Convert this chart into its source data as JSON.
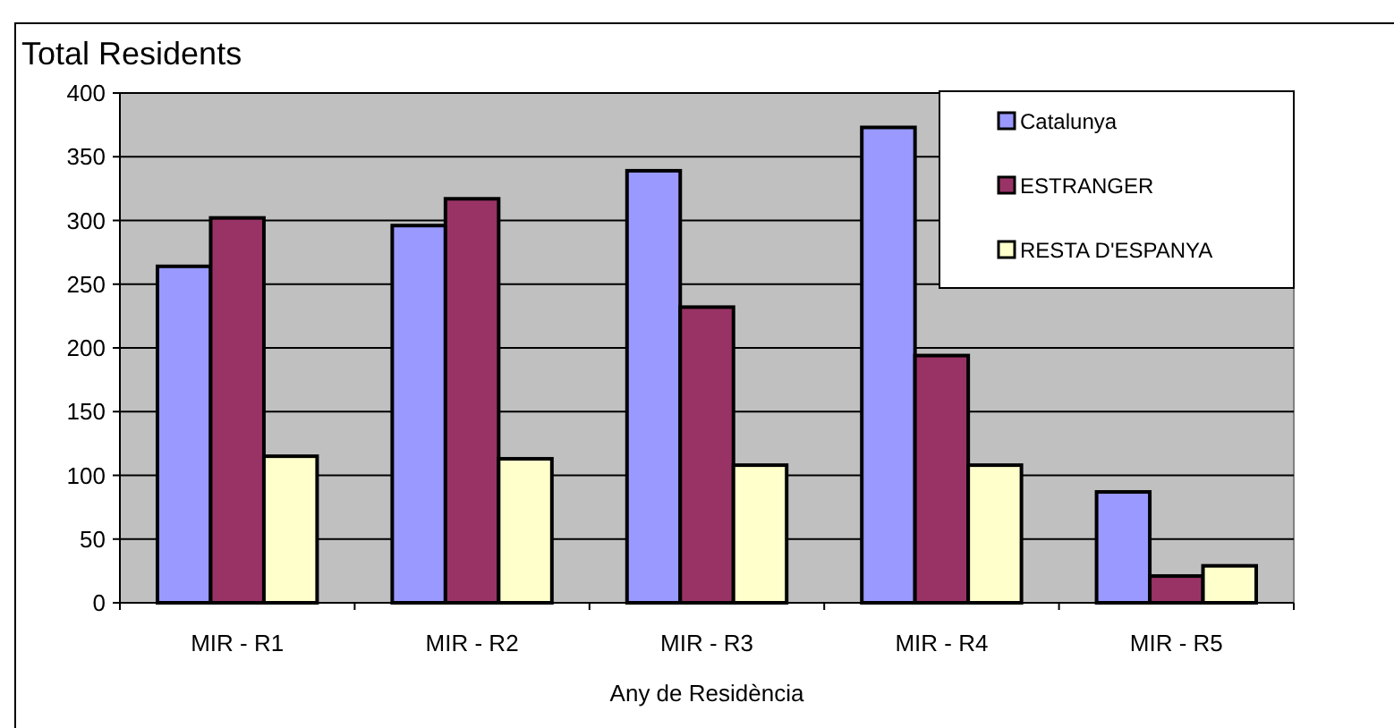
{
  "chart_data": {
    "type": "bar",
    "title": "Total Residents",
    "xlabel": "Any de Residència",
    "categories": [
      "MIR - R1",
      "MIR - R2",
      "MIR - R3",
      "MIR - R4",
      "MIR - R5"
    ],
    "series": [
      {
        "name": "Catalunya",
        "color": "#9999ff",
        "values": [
          264,
          296,
          339,
          373,
          87
        ]
      },
      {
        "name": "ESTRANGER",
        "color": "#993366",
        "values": [
          302,
          317,
          232,
          194,
          21
        ]
      },
      {
        "name": "RESTA D'ESPANYA",
        "color": "#ffffcc",
        "values": [
          115,
          113,
          108,
          108,
          29
        ]
      }
    ],
    "ylim": [
      0,
      400
    ],
    "yticks": [
      0,
      50,
      100,
      150,
      200,
      250,
      300,
      350,
      400
    ],
    "grid": "y",
    "legend": "top right"
  }
}
